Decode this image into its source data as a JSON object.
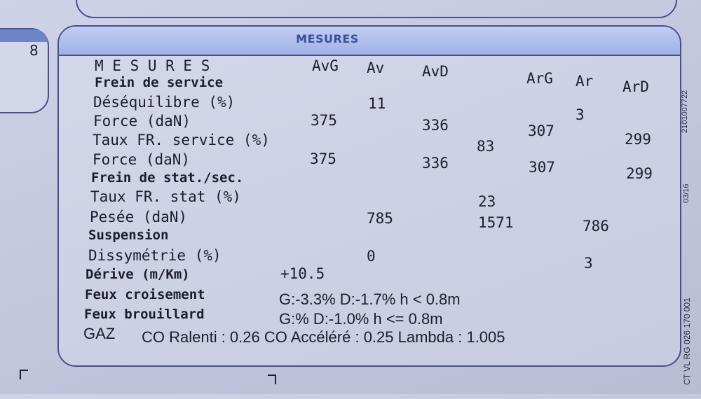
{
  "left_card": {
    "number": "8"
  },
  "panel": {
    "title": "MESURES"
  },
  "table": {
    "heading": "M E S U R E S",
    "columns": {
      "avg": "AvG",
      "av": "Av",
      "avd": "AvD",
      "arg": "ArG",
      "ar": "Ar",
      "ard": "ArD"
    },
    "frein_service": {
      "label": "Frein de service",
      "desequilibre": {
        "label": "Déséquilibre (%)",
        "av": "11",
        "ar": "3"
      },
      "force": {
        "label": "Force (daN)",
        "avg": "375",
        "avd": "336",
        "arg": "307",
        "ard": "299"
      },
      "taux": {
        "label": "Taux FR. service (%)",
        "value": "83"
      },
      "force2": {
        "label": "Force  (daN)",
        "avg": "375",
        "avd": "336",
        "arg": "307",
        "ard": "299"
      }
    },
    "frein_stat": {
      "label": "Frein de stat./sec.",
      "taux": {
        "label": "Taux FR. stat (%)",
        "value": "23"
      },
      "pesee": {
        "label": "Pesée  (daN)",
        "av": "785",
        "total": "1571",
        "ar": "786"
      }
    },
    "suspension": {
      "label": "Suspension",
      "dissymetrie": {
        "label": "Dissymétrie (%)",
        "av": "0",
        "ar": "3"
      }
    },
    "derive": {
      "label": "Dérive (m/Km)",
      "value": "+10.5"
    },
    "feux_croisement": {
      "label": "Feux croisement",
      "value": "G:-3.3%  D:-1.7%  h < 0.8m"
    },
    "feux_brouillard": {
      "label": "Feux brouillard",
      "value": "G:%  D:-1.0%  h <= 0.8m"
    },
    "gaz": {
      "label": "GAZ",
      "value": "CO Ralenti : 0.26 CO Accéléré : 0.25 Lambda : 1.005"
    }
  },
  "side_codes": {
    "code1": "2101007722",
    "code2": "03/16",
    "code3": "CT VL RG 026 170 001"
  }
}
